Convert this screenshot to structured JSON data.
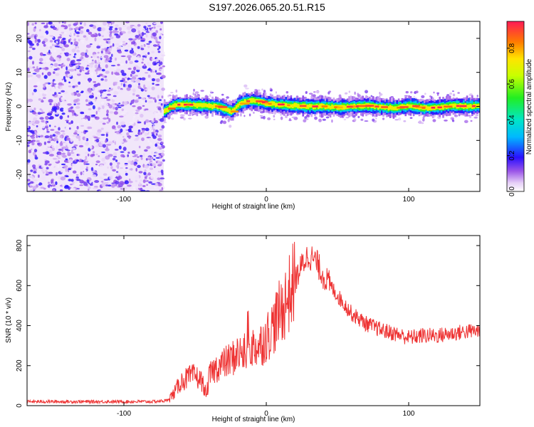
{
  "page_title": "S197.2026.065.20.51.R15",
  "chart_data": [
    {
      "type": "heatmap",
      "title": "S197.2026.065.20.51.R15",
      "xlabel": "Height of straight line (km)",
      "ylabel": "Frequency (Hz)",
      "xlim": [
        -168,
        150
      ],
      "ylim": [
        -25,
        25
      ],
      "x_ticks": [
        -100,
        0,
        100
      ],
      "y_ticks": [
        -20,
        -10,
        0,
        10,
        20
      ],
      "noise_region": {
        "x_start": -168,
        "x_end": -72,
        "description_value_range": [
          0.0,
          0.35
        ]
      },
      "signal_line": {
        "x": [
          -72,
          -65,
          -55,
          -45,
          -35,
          -25,
          -20,
          -15,
          -10,
          -5,
          0,
          10,
          20,
          30,
          40,
          50,
          60,
          70,
          80,
          90,
          100,
          110,
          120,
          130,
          140,
          150
        ],
        "freq": [
          -1.5,
          0.5,
          0.5,
          0.2,
          0.0,
          -1.5,
          0.5,
          1.5,
          1.6,
          1.4,
          0.8,
          0.5,
          0.2,
          0.0,
          0.0,
          -0.3,
          0.0,
          0.2,
          -0.2,
          -0.5,
          0.3,
          -0.5,
          -0.3,
          0.2,
          0.0,
          0.2
        ],
        "peak_amplitude": 0.95
      },
      "colorbar": {
        "label": "Normalized spectral amplitude",
        "range": [
          0.0,
          0.95
        ],
        "ticks": [
          0.0,
          0.2,
          0.4,
          0.6,
          0.8
        ]
      }
    },
    {
      "type": "line",
      "xlabel": "Height of straight line (km)",
      "ylabel": "SNR (10 * v/v)",
      "xlim": [
        -168,
        150
      ],
      "ylim": [
        0,
        850
      ],
      "x_ticks": [
        -100,
        0,
        100
      ],
      "y_ticks": [
        0,
        200,
        400,
        600,
        800
      ],
      "color": "#ee3333",
      "series": [
        {
          "name": "SNR",
          "x": [
            -168,
            -140,
            -120,
            -100,
            -80,
            -70,
            -65,
            -60,
            -55,
            -50,
            -45,
            -42,
            -40,
            -35,
            -30,
            -25,
            -20,
            -15,
            -10,
            -5,
            0,
            5,
            10,
            15,
            20,
            25,
            28,
            30,
            35,
            40,
            50,
            60,
            70,
            80,
            90,
            100,
            110,
            120,
            130,
            140,
            150
          ],
          "y": [
            20,
            20,
            20,
            20,
            20,
            25,
            60,
            120,
            140,
            150,
            120,
            50,
            150,
            190,
            210,
            230,
            260,
            260,
            290,
            300,
            340,
            400,
            470,
            540,
            620,
            700,
            740,
            750,
            720,
            650,
            550,
            460,
            410,
            380,
            360,
            340,
            350,
            350,
            360,
            370,
            375
          ]
        }
      ]
    }
  ]
}
